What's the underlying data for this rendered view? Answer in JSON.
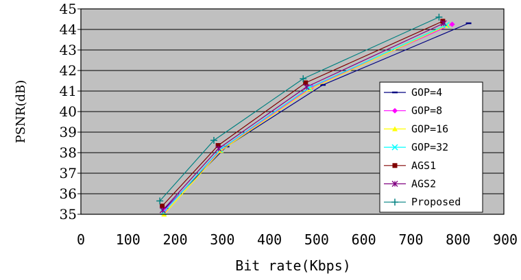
{
  "chart_data": {
    "type": "line",
    "xlabel": "Bit rate(Kbps)",
    "ylabel": "PSNR(dB)",
    "xlim": [
      0,
      900
    ],
    "ylim": [
      35,
      45
    ],
    "xticks": [
      "0",
      "100",
      "200",
      "300",
      "400",
      "500",
      "600",
      "700",
      "800",
      "900"
    ],
    "yticks": [
      "35",
      "36",
      "37",
      "38",
      "39",
      "40",
      "41",
      "42",
      "43",
      "44",
      "45"
    ],
    "grid": "horizontal",
    "background": "#c0c0c0",
    "legend_position": "right",
    "series": [
      {
        "name": "GOP=4",
        "color": "#000080",
        "marker": "dash",
        "points": [
          [
            180,
            35.3
          ],
          [
            310,
            38.3
          ],
          [
            515,
            41.3
          ],
          [
            825,
            44.3
          ]
        ]
      },
      {
        "name": "GOP=8",
        "color": "#ff00ff",
        "marker": "diamond",
        "points": [
          [
            178,
            35.2
          ],
          [
            300,
            38.2
          ],
          [
            492,
            41.2
          ],
          [
            790,
            44.25
          ]
        ]
      },
      {
        "name": "GOP=16",
        "color": "#ffff00",
        "marker": "triangle",
        "points": [
          [
            177,
            35.0
          ],
          [
            298,
            38.1
          ],
          [
            488,
            41.1
          ],
          [
            780,
            44.2
          ]
        ]
      },
      {
        "name": "GOP=32",
        "color": "#00ffff",
        "marker": "x",
        "points": [
          [
            176,
            35.1
          ],
          [
            296,
            38.15
          ],
          [
            485,
            41.15
          ],
          [
            778,
            44.22
          ]
        ]
      },
      {
        "name": "AGS1",
        "color": "#800000",
        "marker": "square",
        "points": [
          [
            173,
            35.4
          ],
          [
            292,
            38.35
          ],
          [
            478,
            41.4
          ],
          [
            770,
            44.4
          ]
        ]
      },
      {
        "name": "AGS2",
        "color": "#800080",
        "marker": "star",
        "points": [
          [
            174,
            35.2
          ],
          [
            293,
            38.2
          ],
          [
            480,
            41.2
          ],
          [
            772,
            44.3
          ]
        ]
      },
      {
        "name": "Proposed",
        "color": "#008080",
        "marker": "plus",
        "points": [
          [
            168,
            35.65
          ],
          [
            283,
            38.6
          ],
          [
            473,
            41.6
          ],
          [
            762,
            44.6
          ]
        ]
      }
    ]
  }
}
